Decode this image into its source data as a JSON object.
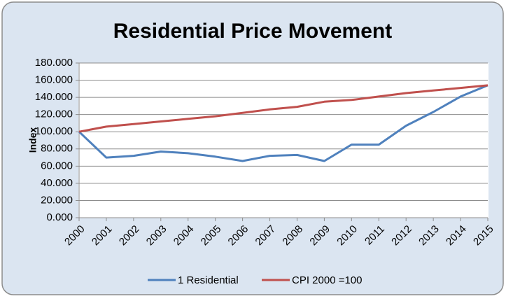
{
  "chart_data": {
    "type": "line",
    "title": "Residential Price Movement",
    "y_label": "Index",
    "categories": [
      "2000",
      "2001",
      "2002",
      "2003",
      "2004",
      "2005",
      "2006",
      "2007",
      "2008",
      "2009",
      "2010",
      "2011",
      "2012",
      "2013",
      "2014",
      "2015"
    ],
    "series": [
      {
        "name": "1 Residential",
        "color": "#4f81bd",
        "values": [
          100,
          70,
          72,
          77,
          75,
          71,
          66,
          72,
          73,
          66,
          85,
          85,
          107,
          123,
          141,
          154
        ]
      },
      {
        "name": "CPI 2000 =100",
        "color": "#c0504d",
        "values": [
          100,
          106,
          109,
          112,
          115,
          118,
          122,
          126,
          129,
          135,
          137,
          141,
          145,
          148,
          151,
          154
        ]
      }
    ],
    "ylim": [
      0,
      180
    ],
    "yticks": [
      {
        "value": 0,
        "label": "0.000"
      },
      {
        "value": 20,
        "label": "20.000"
      },
      {
        "value": 40,
        "label": "40.000"
      },
      {
        "value": 60,
        "label": "60.000"
      },
      {
        "value": 80,
        "label": "80.000"
      },
      {
        "value": 100,
        "label": "100.000"
      },
      {
        "value": 120,
        "label": "120.000"
      },
      {
        "value": 140,
        "label": "140.000"
      },
      {
        "value": 160,
        "label": "160.000"
      },
      {
        "value": 180,
        "label": "180.000"
      }
    ],
    "grid": true,
    "legend": "bottom"
  }
}
